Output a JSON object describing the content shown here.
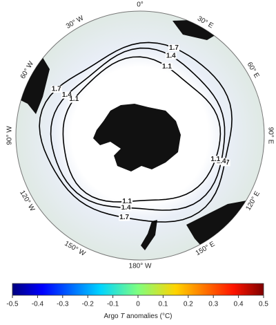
{
  "map": {
    "longitude_labels": [
      "0°",
      "30° E",
      "60° E",
      "90° E",
      "120° E",
      "150° E",
      "180° W",
      "150° W",
      "120° W",
      "90° W",
      "60° W",
      "30° W"
    ],
    "contour_labels": [
      "1.7",
      "1.4",
      "1.1"
    ]
  },
  "chart_data": {
    "type": "colorbar",
    "xlim": [
      -0.5,
      0.5
    ],
    "xticks": [
      -0.5,
      -0.4,
      -0.3,
      -0.2,
      -0.1,
      0,
      0.1,
      0.2,
      0.3,
      0.4,
      0.5
    ],
    "label_prefix": "Argo ",
    "label_variable": "T",
    "label_suffix": " anomalies (°C)"
  }
}
